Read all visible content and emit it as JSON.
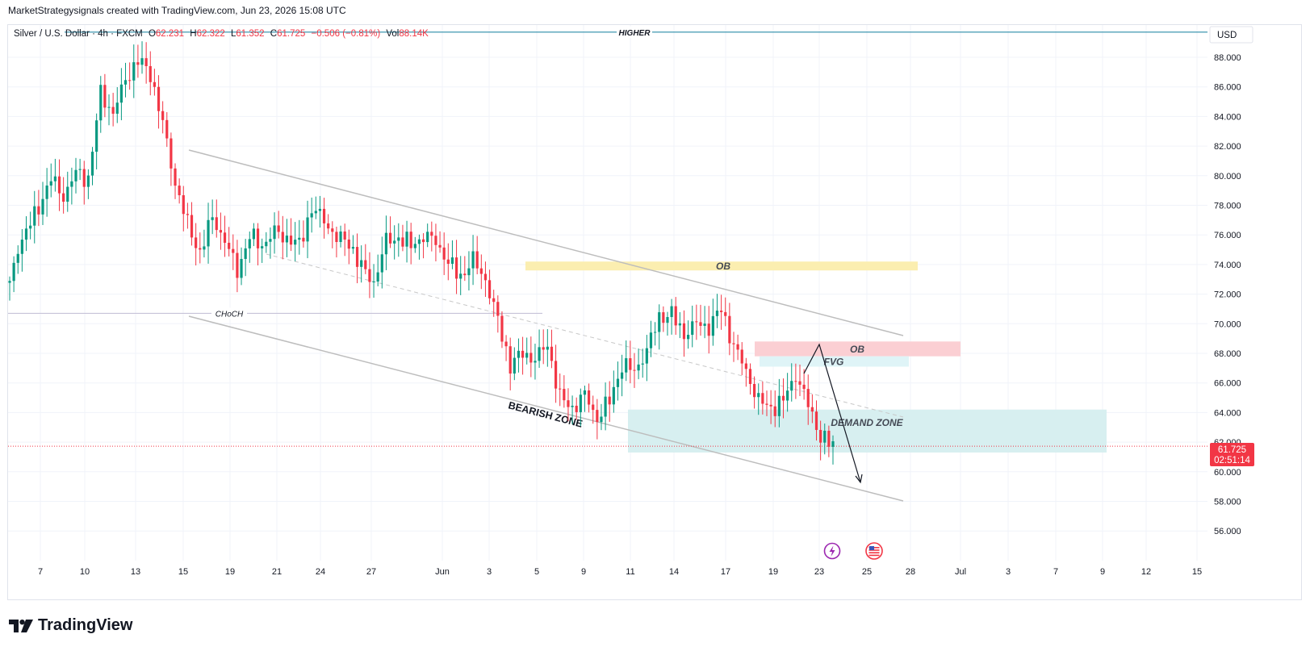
{
  "header": {
    "attribution": "MarketStrategysignals created with TradingView.com, Jun 23, 2026 15:08 UTC"
  },
  "legend": {
    "symbol": "Silver / U.S. Dollar · 4h · FXCM",
    "o_label": "O",
    "o_value": "62.231",
    "h_label": "H",
    "h_value": "62.322",
    "l_label": "L",
    "l_value": "61.352",
    "c_label": "C",
    "c_value": "61.725",
    "change": "−0.506 (−0.81%)",
    "vol_label": "Vol",
    "vol_value": "88.14K"
  },
  "currency_button": "USD",
  "brand": {
    "name": "TradingView"
  },
  "colors": {
    "up": "#089981",
    "down": "#f23645",
    "grid": "#f0f3fa",
    "text": "#131722",
    "ob_yellow": "#fbeeb0",
    "ob_red": "#fbcfd3",
    "fvg": "#dff4f7",
    "demand": "#d7eff0",
    "higher_line": "#2a8ca8",
    "channel": "#bdbdbd",
    "current_price": "#f23645"
  },
  "chart_data": {
    "type": "candlestick",
    "symbol": "Silver / U.S. Dollar",
    "timeframe": "4h",
    "y_axis": {
      "range": [
        54.5,
        90.2
      ],
      "ticks": [
        "88.000",
        "86.000",
        "84.000",
        "82.000",
        "80.000",
        "78.000",
        "76.000",
        "74.000",
        "72.000",
        "70.000",
        "68.000",
        "66.000",
        "64.000",
        "62.000",
        "60.000",
        "58.000",
        "56.000"
      ]
    },
    "x_axis": {
      "ticks": [
        "7",
        "10",
        "13",
        "15",
        "19",
        "21",
        "24",
        "27",
        "Jun",
        "3",
        "5",
        "9",
        "11",
        "14",
        "17",
        "19",
        "23",
        "25",
        "28",
        "Jul",
        "3",
        "7",
        "9",
        "12",
        "15"
      ]
    },
    "last_price": "61.725",
    "countdown": "02:51:14",
    "anchors": [
      {
        "t": 0,
        "p": 72.6
      },
      {
        "t": 2,
        "p": 75.2
      },
      {
        "t": 6,
        "p": 77.3
      },
      {
        "t": 10,
        "p": 79.8
      },
      {
        "t": 13,
        "p": 78.6
      },
      {
        "t": 16,
        "p": 80.2
      },
      {
        "t": 19,
        "p": 79.8
      },
      {
        "t": 22,
        "p": 85.6
      },
      {
        "t": 25,
        "p": 84.2
      },
      {
        "t": 28,
        "p": 86.5
      },
      {
        "t": 31,
        "p": 87.8
      },
      {
        "t": 34,
        "p": 86.9
      },
      {
        "t": 37,
        "p": 83.5
      },
      {
        "t": 40,
        "p": 79.5
      },
      {
        "t": 43,
        "p": 76.7
      },
      {
        "t": 46,
        "p": 74.8
      },
      {
        "t": 49,
        "p": 77.2
      },
      {
        "t": 52,
        "p": 75.6
      },
      {
        "t": 55,
        "p": 73.6
      },
      {
        "t": 58,
        "p": 75.9
      },
      {
        "t": 61,
        "p": 75.3
      },
      {
        "t": 64,
        "p": 76.2
      },
      {
        "t": 67,
        "p": 75.8
      },
      {
        "t": 70,
        "p": 75.3
      },
      {
        "t": 73,
        "p": 77.8
      },
      {
        "t": 76,
        "p": 77.0
      },
      {
        "t": 79,
        "p": 75.8
      },
      {
        "t": 82,
        "p": 75.5
      },
      {
        "t": 85,
        "p": 73.8
      },
      {
        "t": 88,
        "p": 72.8
      },
      {
        "t": 91,
        "p": 75.6
      },
      {
        "t": 94,
        "p": 75.8
      },
      {
        "t": 97,
        "p": 75.3
      },
      {
        "t": 100,
        "p": 75.9
      },
      {
        "t": 103,
        "p": 75.6
      },
      {
        "t": 106,
        "p": 74.1
      },
      {
        "t": 109,
        "p": 73.2
      },
      {
        "t": 112,
        "p": 74.3
      },
      {
        "t": 115,
        "p": 73.0
      },
      {
        "t": 118,
        "p": 70.2
      },
      {
        "t": 121,
        "p": 67.2
      },
      {
        "t": 124,
        "p": 68.0
      },
      {
        "t": 127,
        "p": 67.6
      },
      {
        "t": 130,
        "p": 68.6
      },
      {
        "t": 133,
        "p": 65.0
      },
      {
        "t": 136,
        "p": 64.3
      },
      {
        "t": 139,
        "p": 65.2
      },
      {
        "t": 142,
        "p": 63.6
      },
      {
        "t": 145,
        "p": 64.8
      },
      {
        "t": 148,
        "p": 67.2
      },
      {
        "t": 151,
        "p": 66.8
      },
      {
        "t": 154,
        "p": 68.2
      },
      {
        "t": 157,
        "p": 70.5
      },
      {
        "t": 160,
        "p": 70.6
      },
      {
        "t": 163,
        "p": 69.3
      },
      {
        "t": 166,
        "p": 70.0
      },
      {
        "t": 169,
        "p": 69.8
      },
      {
        "t": 172,
        "p": 71.0
      },
      {
        "t": 175,
        "p": 68.5
      },
      {
        "t": 178,
        "p": 66.8
      },
      {
        "t": 181,
        "p": 64.8
      },
      {
        "t": 184,
        "p": 64.3
      },
      {
        "t": 187,
        "p": 64.8
      },
      {
        "t": 190,
        "p": 66.6
      },
      {
        "t": 193,
        "p": 64.5
      },
      {
        "t": 196,
        "p": 62.4
      },
      {
        "t": 199,
        "p": 61.7
      }
    ],
    "horizontal_levels": [
      {
        "name": "HIGHER",
        "price": 89.7,
        "from_tick": "7",
        "to_tick": "15"
      },
      {
        "name": "CHoCH",
        "price": 70.7
      }
    ],
    "zones": [
      {
        "label": "OB",
        "top": 74.2,
        "bottom": 73.6
      },
      {
        "label": "OB",
        "top": 68.8,
        "bottom": 67.8
      },
      {
        "label": "FVG",
        "top": 67.8,
        "bottom": 67.1
      },
      {
        "label": "DEMAND ZONE",
        "top": 64.2,
        "bottom": 61.3
      }
    ],
    "annotations": [
      "HIGHER",
      "CHoCH",
      "OB",
      "OB",
      "FVG",
      "BEARISH ZONE",
      "DEMAND ZONE"
    ]
  }
}
